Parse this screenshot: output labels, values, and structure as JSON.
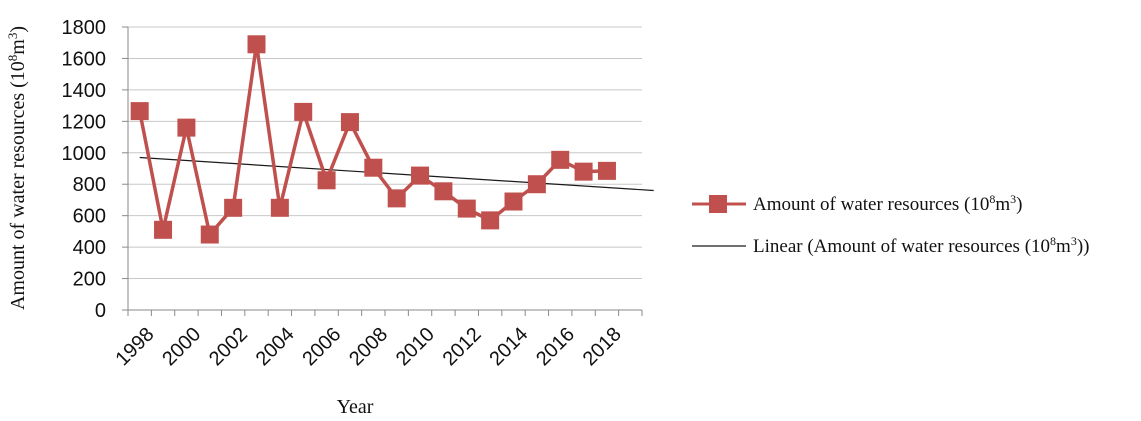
{
  "chart_data": {
    "type": "line",
    "xlabel": "Year",
    "ylabel": "Amount of water resources (10",
    "ylabel_sup1": "8",
    "ylabel_mid": "m",
    "ylabel_sup2": "3",
    "ylabel_end": ")",
    "ylim": [
      0,
      1800
    ],
    "yticks": [
      0,
      200,
      400,
      600,
      800,
      1000,
      1200,
      1400,
      1600,
      1800
    ],
    "xticks": [
      "1998",
      "2000",
      "2002",
      "2004",
      "2006",
      "2008",
      "2010",
      "2012",
      "2014",
      "2016",
      "2018"
    ],
    "x": [
      1998,
      1999,
      2000,
      2001,
      2002,
      2003,
      2004,
      2005,
      2006,
      2007,
      2008,
      2009,
      2010,
      2011,
      2012,
      2013,
      2014,
      2015,
      2016,
      2017,
      2018
    ],
    "grid": true,
    "legend_position": "right",
    "series": [
      {
        "name": "Amount of water resources (10⁸m³)",
        "legend_parts": [
          "Amount of water resources (10",
          "8",
          "m",
          "3",
          ")"
        ],
        "color": "#c0504d",
        "marker": "square",
        "values": [
          1265,
          510,
          1160,
          480,
          650,
          1690,
          650,
          1260,
          825,
          1195,
          905,
          710,
          855,
          755,
          645,
          570,
          690,
          800,
          955,
          880,
          885
        ]
      },
      {
        "name": "Linear (Amount of water resources (10⁸m³))",
        "legend_parts": [
          "Linear (Amount of water resources (10",
          "8",
          "m",
          "3",
          "))"
        ],
        "color": "#1a1a1a",
        "type": "trendline",
        "trend_start": [
          1998,
          970
        ],
        "trend_end": [
          2020,
          760
        ]
      }
    ]
  }
}
